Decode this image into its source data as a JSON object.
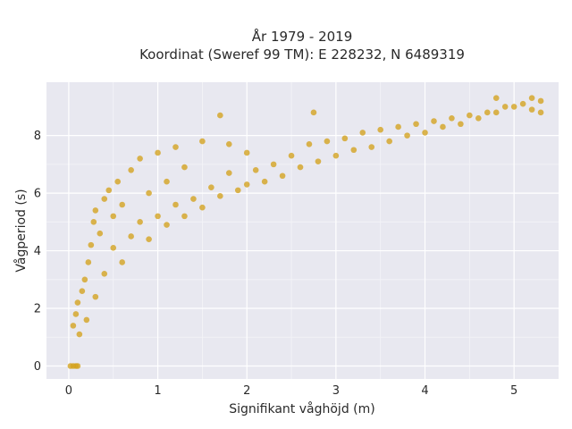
{
  "chart_data": {
    "type": "scatter",
    "title": "År 1979 - 2019",
    "subtitle": "Koordinat (Sweref 99 TM): E 228232, N 6489319",
    "xlabel": "Signifikant våghöjd (m)",
    "ylabel": "Vågperiod (s)",
    "xlim": [
      -0.25,
      5.5
    ],
    "ylim": [
      -0.45,
      9.85
    ],
    "xticks": [
      0,
      1,
      2,
      3,
      4,
      5
    ],
    "xtick_labels": [
      "0",
      "1",
      "2",
      "3",
      "4",
      "5"
    ],
    "yticks": [
      0,
      2,
      4,
      6,
      8
    ],
    "ytick_labels": [
      "0",
      "2",
      "4",
      "6",
      "8"
    ],
    "grid": true,
    "background": "#e8e8f0",
    "point_color": "#d4a21c",
    "series": [
      {
        "points": [
          [
            0.02,
            0.0
          ],
          [
            0.05,
            0.0
          ],
          [
            0.08,
            0.0
          ],
          [
            0.1,
            0.0
          ],
          [
            0.05,
            1.4
          ],
          [
            0.08,
            1.8
          ],
          [
            0.1,
            2.2
          ],
          [
            0.12,
            1.1
          ],
          [
            0.15,
            2.6
          ],
          [
            0.18,
            3.0
          ],
          [
            0.2,
            1.6
          ],
          [
            0.22,
            3.6
          ],
          [
            0.25,
            4.2
          ],
          [
            0.28,
            5.0
          ],
          [
            0.3,
            5.4
          ],
          [
            0.3,
            2.4
          ],
          [
            0.35,
            4.6
          ],
          [
            0.4,
            3.2
          ],
          [
            0.4,
            5.8
          ],
          [
            0.45,
            6.1
          ],
          [
            0.5,
            4.1
          ],
          [
            0.5,
            5.2
          ],
          [
            0.55,
            6.4
          ],
          [
            0.6,
            3.6
          ],
          [
            0.6,
            5.6
          ],
          [
            0.7,
            4.5
          ],
          [
            0.7,
            6.8
          ],
          [
            0.8,
            5.0
          ],
          [
            0.8,
            7.2
          ],
          [
            0.9,
            4.4
          ],
          [
            0.9,
            6.0
          ],
          [
            1.0,
            5.2
          ],
          [
            1.0,
            7.4
          ],
          [
            1.1,
            4.9
          ],
          [
            1.1,
            6.4
          ],
          [
            1.2,
            5.6
          ],
          [
            1.2,
            7.6
          ],
          [
            1.3,
            5.2
          ],
          [
            1.3,
            6.9
          ],
          [
            1.4,
            5.8
          ],
          [
            1.5,
            5.5
          ],
          [
            1.5,
            7.8
          ],
          [
            1.6,
            6.2
          ],
          [
            1.7,
            5.9
          ],
          [
            1.8,
            6.7
          ],
          [
            1.8,
            7.7
          ],
          [
            1.9,
            6.1
          ],
          [
            2.0,
            6.3
          ],
          [
            2.0,
            7.4
          ],
          [
            2.1,
            6.8
          ],
          [
            2.2,
            6.4
          ],
          [
            2.3,
            7.0
          ],
          [
            2.4,
            6.6
          ],
          [
            2.5,
            7.3
          ],
          [
            2.6,
            6.9
          ],
          [
            2.7,
            7.7
          ],
          [
            2.8,
            7.1
          ],
          [
            2.9,
            7.8
          ],
          [
            3.0,
            7.3
          ],
          [
            3.1,
            7.9
          ],
          [
            3.2,
            7.5
          ],
          [
            3.3,
            8.1
          ],
          [
            3.4,
            7.6
          ],
          [
            3.5,
            8.2
          ],
          [
            3.6,
            7.8
          ],
          [
            3.7,
            8.3
          ],
          [
            3.8,
            8.0
          ],
          [
            3.9,
            8.4
          ],
          [
            4.0,
            8.1
          ],
          [
            4.1,
            8.5
          ],
          [
            4.2,
            8.3
          ],
          [
            4.3,
            8.6
          ],
          [
            4.4,
            8.4
          ],
          [
            4.5,
            8.7
          ],
          [
            4.6,
            8.6
          ],
          [
            4.7,
            8.8
          ],
          [
            4.8,
            8.8
          ],
          [
            4.9,
            9.0
          ],
          [
            5.0,
            9.0
          ],
          [
            5.1,
            9.1
          ],
          [
            5.2,
            9.3
          ],
          [
            5.2,
            8.9
          ],
          [
            5.3,
            9.2
          ],
          [
            5.3,
            8.8
          ],
          [
            1.7,
            8.7
          ],
          [
            2.75,
            8.8
          ],
          [
            4.8,
            9.3
          ]
        ]
      }
    ]
  }
}
